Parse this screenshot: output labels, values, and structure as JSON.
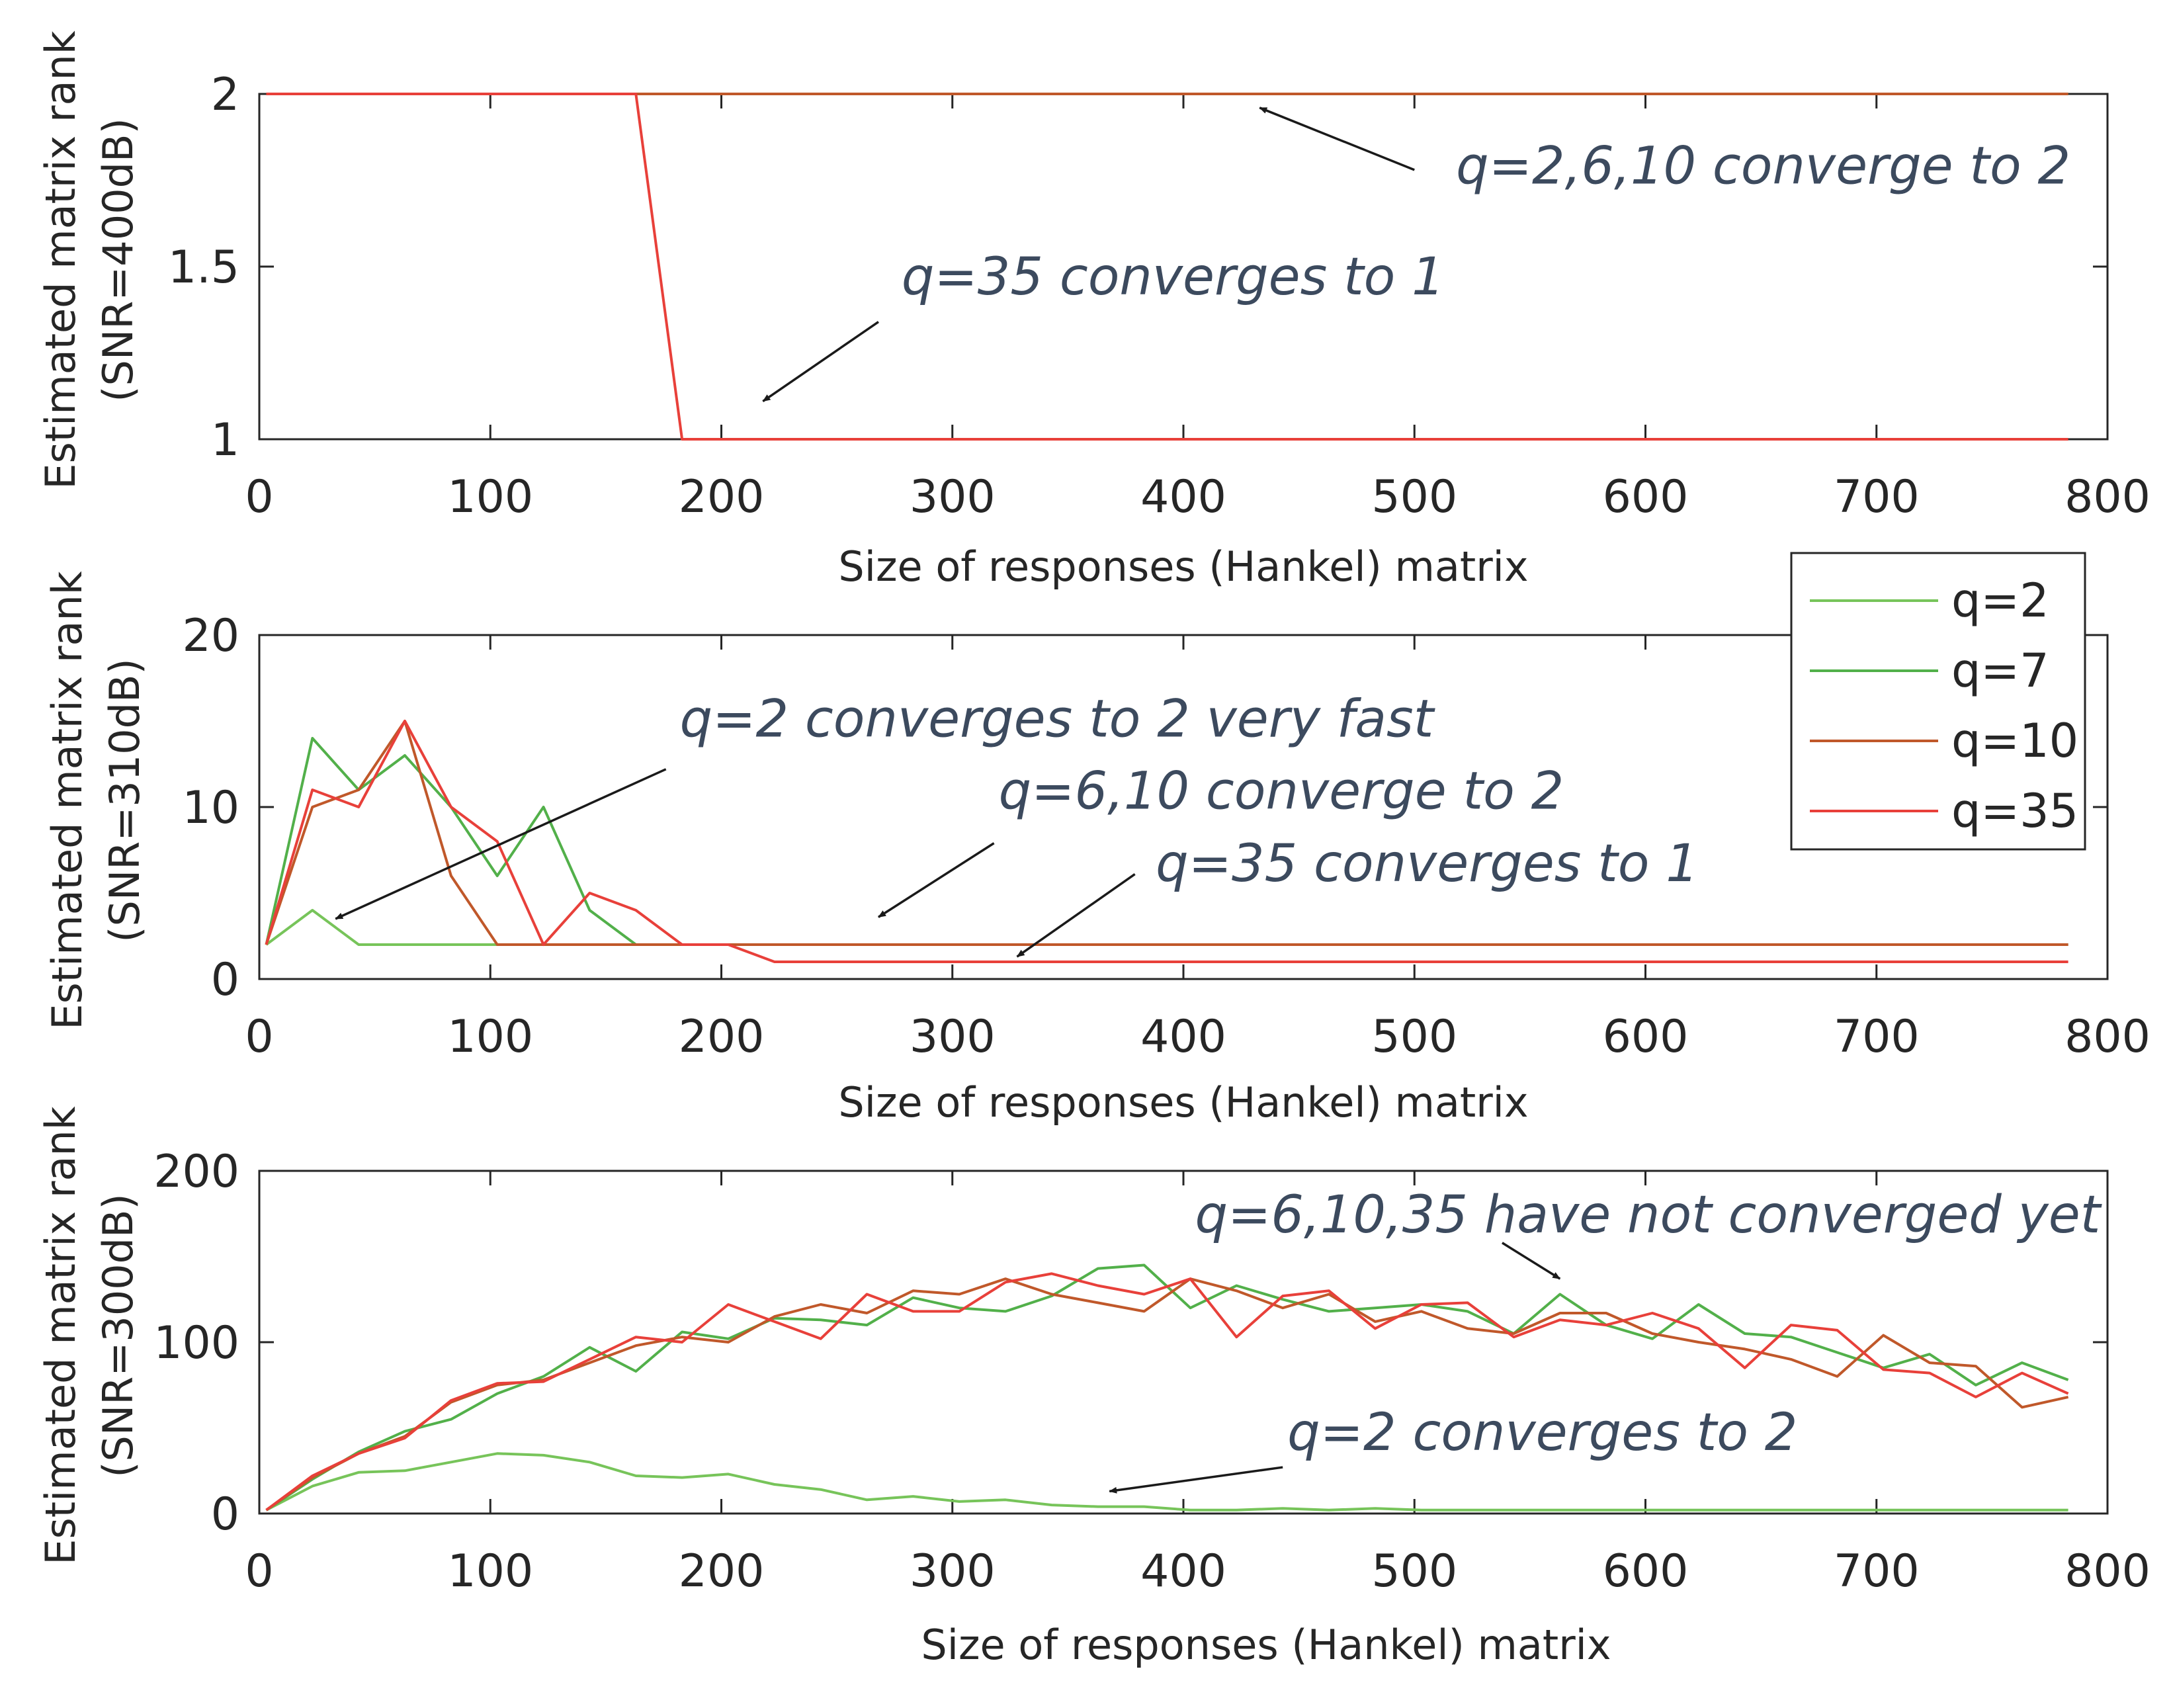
{
  "colors": {
    "q2": "#77c45a",
    "q7": "#52b04a",
    "q10": "#c0582a",
    "q35": "#e8403a",
    "axis": "#262626",
    "annotation": "#3c4a5e"
  },
  "legend": {
    "placement": "top-right of middle panel",
    "entries": [
      "q=2",
      "q=7",
      "q=10",
      "q=35"
    ]
  },
  "chart_data": [
    {
      "type": "line",
      "title": "",
      "xlabel": "Size of responses (Hankel) matrix",
      "ylabel": [
        "Estimated matrix rank",
        "(SNR=400dB)"
      ],
      "xlim": [
        0,
        800
      ],
      "ylim": [
        1,
        2
      ],
      "xticks": [
        0,
        100,
        200,
        300,
        400,
        500,
        600,
        700,
        800
      ],
      "yticks": [
        1,
        1.5,
        2
      ],
      "series": [
        {
          "name": "q=2",
          "color_key": "q2",
          "x": [
            3,
            783
          ],
          "y": [
            2,
            2
          ]
        },
        {
          "name": "q=7",
          "color_key": "q7",
          "x": [
            3,
            783
          ],
          "y": [
            2,
            2
          ]
        },
        {
          "name": "q=10",
          "color_key": "q10",
          "x": [
            3,
            783
          ],
          "y": [
            2,
            2
          ]
        },
        {
          "name": "q=35",
          "color_key": "q35",
          "x": [
            3,
            163,
            183,
            783
          ],
          "y": [
            2,
            2,
            1,
            1
          ]
        }
      ],
      "annotations": [
        {
          "text": "q=2,6,10 converge to 2",
          "text_at": [
            518,
            1.74
          ],
          "arrow_from": [
            500,
            1.78
          ],
          "arrow_to": [
            433,
            1.96
          ]
        },
        {
          "text": "q=35 converges to 1",
          "text_at": [
            278,
            1.42
          ],
          "arrow_from": [
            268,
            1.34
          ],
          "arrow_to": [
            218,
            1.11
          ]
        }
      ]
    },
    {
      "type": "line",
      "title": "",
      "xlabel": "Size of responses (Hankel) matrix",
      "ylabel": [
        "Estimated matrix rank",
        "(SNR=310dB)"
      ],
      "xlim": [
        0,
        800
      ],
      "ylim": [
        0,
        20
      ],
      "xticks": [
        0,
        100,
        200,
        300,
        400,
        500,
        600,
        700,
        800
      ],
      "yticks": [
        0,
        10,
        20
      ],
      "series": [
        {
          "name": "q=2",
          "color_key": "q2",
          "x": [
            3,
            23,
            43,
            63,
            83,
            103,
            783
          ],
          "y": [
            2,
            4,
            2,
            2,
            2,
            2,
            2
          ]
        },
        {
          "name": "q=7",
          "color_key": "q7",
          "x": [
            3,
            23,
            43,
            63,
            83,
            103,
            123,
            143,
            163,
            183,
            783
          ],
          "y": [
            2,
            14,
            11,
            13,
            10,
            6,
            10,
            4,
            2,
            2,
            2
          ]
        },
        {
          "name": "q=10",
          "color_key": "q10",
          "x": [
            3,
            23,
            43,
            63,
            83,
            103,
            123,
            783
          ],
          "y": [
            2,
            10,
            11,
            15,
            6,
            2,
            2,
            2
          ]
        },
        {
          "name": "q=35",
          "color_key": "q35",
          "x": [
            3,
            23,
            43,
            63,
            83,
            103,
            123,
            143,
            163,
            183,
            203,
            223,
            783
          ],
          "y": [
            2,
            11,
            10,
            15,
            10,
            8,
            2,
            5,
            4,
            2,
            2,
            1,
            1
          ]
        }
      ],
      "annotations": [
        {
          "text": "q=2 converges to 2 very fast",
          "text_at": [
            182,
            14.1
          ],
          "arrow_from": [
            176,
            12.2
          ],
          "arrow_to": [
            33,
            3.5
          ]
        },
        {
          "text": "q=6,10 converge to 2",
          "text_at": [
            320,
            9.9
          ],
          "arrow_from": [
            318,
            7.9
          ],
          "arrow_to": [
            268,
            3.6
          ]
        },
        {
          "text": "q=35 converges to 1",
          "text_at": [
            388,
            5.7
          ],
          "arrow_from": [
            379,
            6.1
          ],
          "arrow_to": [
            328,
            1.3
          ]
        }
      ]
    },
    {
      "type": "line",
      "title": "",
      "xlabel": "Size of responses (Hankel) matrix",
      "ylabel": [
        "Estimated matrix rank",
        "(SNR=300dB)"
      ],
      "xlim": [
        0,
        800
      ],
      "ylim": [
        0,
        200
      ],
      "xticks": [
        0,
        100,
        200,
        300,
        400,
        500,
        600,
        700,
        800
      ],
      "yticks": [
        0,
        100,
        200
      ],
      "series": [
        {
          "name": "q=2",
          "color_key": "q2",
          "x": [
            3,
            23,
            43,
            63,
            83,
            103,
            123,
            143,
            163,
            183,
            203,
            223,
            243,
            263,
            283,
            303,
            323,
            343,
            363,
            383,
            403,
            423,
            443,
            463,
            483,
            503,
            523,
            543,
            563,
            583,
            603,
            623,
            643,
            663,
            683,
            703,
            723,
            743,
            763,
            783
          ],
          "y": [
            2,
            16,
            24,
            25,
            30,
            35,
            34,
            30,
            22,
            21,
            23,
            17,
            14,
            8,
            10,
            7,
            8,
            5,
            4,
            4,
            2,
            2,
            3,
            2,
            3,
            2,
            2,
            2,
            2,
            2,
            2,
            2,
            2,
            2,
            2,
            2,
            2,
            2,
            2,
            2
          ]
        },
        {
          "name": "q=7",
          "color_key": "q7",
          "x": [
            3,
            23,
            43,
            63,
            83,
            103,
            123,
            143,
            163,
            183,
            203,
            223,
            243,
            263,
            283,
            303,
            323,
            343,
            363,
            383,
            403,
            423,
            443,
            463,
            483,
            503,
            523,
            543,
            563,
            583,
            603,
            623,
            643,
            663,
            683,
            703,
            723,
            743,
            763,
            783
          ],
          "y": [
            2,
            20,
            36,
            48,
            55,
            70,
            80,
            97,
            83,
            106,
            102,
            114,
            113,
            110,
            126,
            120,
            118,
            127,
            143,
            145,
            120,
            133,
            125,
            118,
            120,
            122,
            118,
            105,
            128,
            110,
            102,
            122,
            105,
            103,
            94,
            85,
            93,
            75,
            88,
            78
          ]
        },
        {
          "name": "q=10",
          "color_key": "q10",
          "x": [
            3,
            23,
            43,
            63,
            83,
            103,
            123,
            143,
            163,
            183,
            203,
            223,
            243,
            263,
            283,
            303,
            323,
            343,
            363,
            383,
            403,
            423,
            443,
            463,
            483,
            503,
            523,
            543,
            563,
            583,
            603,
            623,
            643,
            663,
            683,
            703,
            723,
            743,
            763,
            783
          ],
          "y": [
            2,
            21,
            35,
            45,
            65,
            75,
            78,
            88,
            98,
            103,
            100,
            115,
            122,
            117,
            130,
            128,
            137,
            128,
            123,
            118,
            137,
            130,
            120,
            128,
            112,
            118,
            108,
            105,
            117,
            117,
            105,
            100,
            96,
            90,
            80,
            104,
            88,
            86,
            62,
            68
          ]
        },
        {
          "name": "q=35",
          "color_key": "q35",
          "x": [
            3,
            23,
            43,
            63,
            83,
            103,
            123,
            143,
            163,
            183,
            203,
            223,
            243,
            263,
            283,
            303,
            323,
            343,
            363,
            383,
            403,
            423,
            443,
            463,
            483,
            503,
            523,
            543,
            563,
            583,
            603,
            623,
            643,
            663,
            683,
            703,
            723,
            743,
            763,
            783
          ],
          "y": [
            2,
            22,
            35,
            44,
            66,
            76,
            77,
            90,
            103,
            100,
            122,
            112,
            102,
            128,
            118,
            118,
            135,
            140,
            133,
            128,
            137,
            103,
            127,
            130,
            108,
            122,
            123,
            103,
            113,
            110,
            117,
            108,
            85,
            110,
            107,
            84,
            82,
            68,
            82,
            70
          ]
        }
      ],
      "annotations": [
        {
          "text": "q=6,10,35 have not converged yet",
          "text_at": [
            405,
            164
          ],
          "arrow_from": [
            538,
            158
          ],
          "arrow_to": [
            563,
            137
          ]
        },
        {
          "text": "q=2 converges to 2",
          "text_at": [
            445,
            37
          ],
          "arrow_from": [
            443,
            27
          ],
          "arrow_to": [
            368,
            13
          ]
        }
      ]
    }
  ]
}
